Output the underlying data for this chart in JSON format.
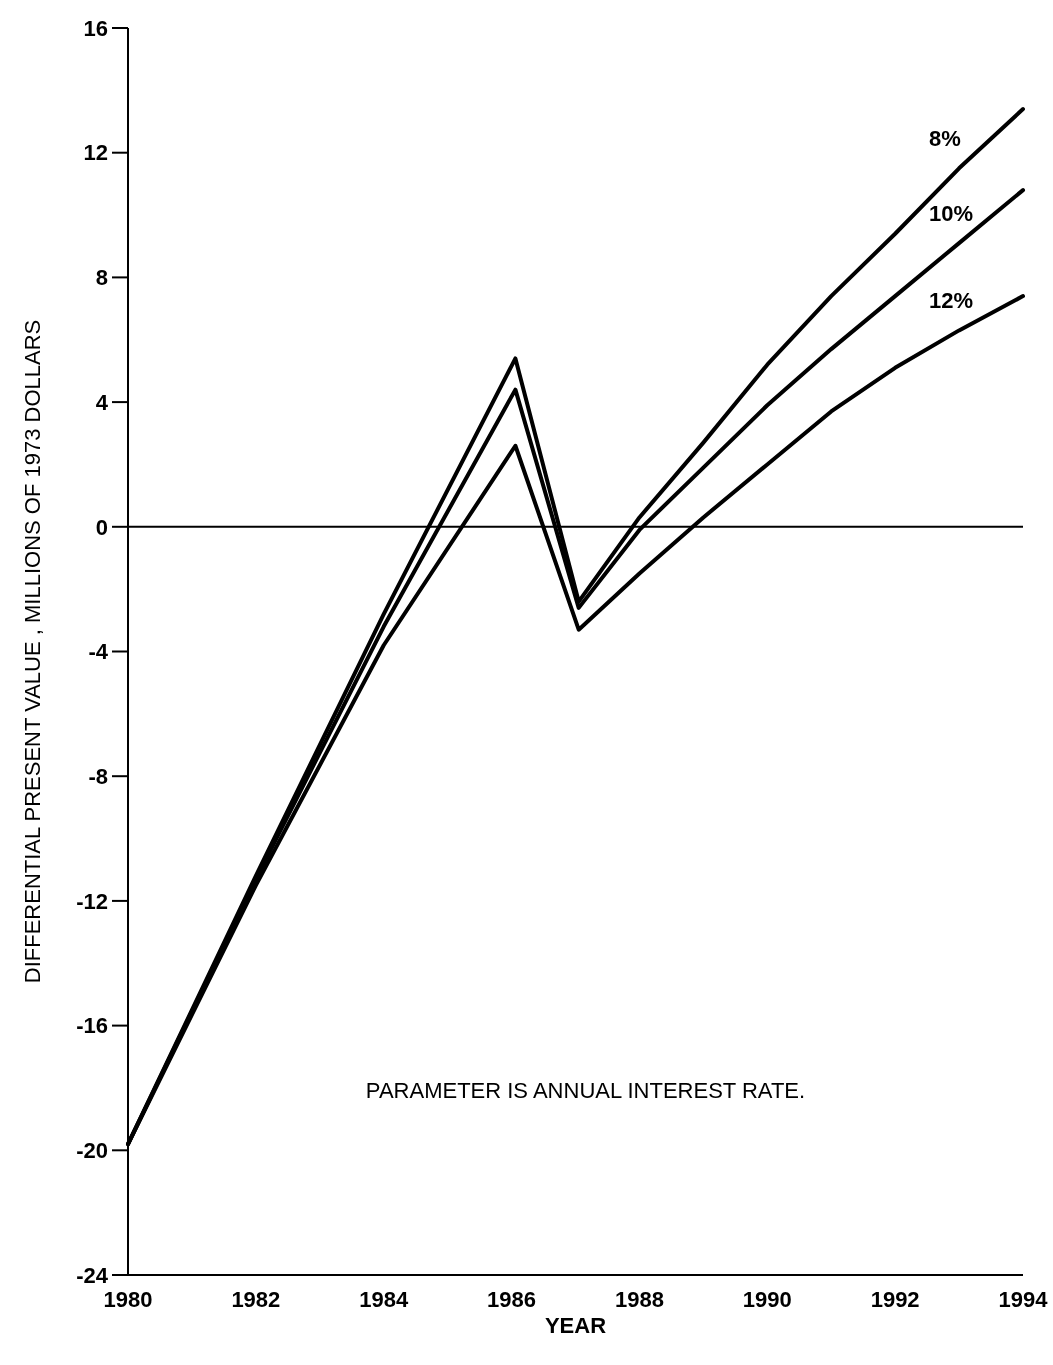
{
  "chart_data": {
    "type": "line",
    "xlabel": "YEAR",
    "ylabel": "DIFFERENTIAL PRESENT VALUE , MILLIONS OF 1973 DOLLARS",
    "x": [
      1980,
      1982,
      1984,
      1986.06,
      1987.05,
      1988,
      1989,
      1990,
      1991,
      1992,
      1993,
      1994
    ],
    "series": [
      {
        "name": "8%",
        "color": "#000000",
        "values": [
          -19.8,
          -11.2,
          -2.8,
          5.4,
          -2.4,
          0.3,
          2.7,
          5.2,
          7.4,
          9.4,
          11.5,
          13.4
        ]
      },
      {
        "name": "10%",
        "color": "#000000",
        "values": [
          -19.8,
          -11.3,
          -3.2,
          4.4,
          -2.6,
          -0.1,
          1.9,
          3.9,
          5.7,
          7.4,
          9.1,
          10.8
        ]
      },
      {
        "name": "12%",
        "color": "#000000",
        "values": [
          -19.8,
          -11.5,
          -3.8,
          2.6,
          -3.3,
          -1.5,
          0.3,
          2.0,
          3.7,
          5.1,
          6.3,
          7.4
        ]
      }
    ],
    "xlim": [
      1980,
      1994
    ],
    "xticks": [
      1980,
      1982,
      1984,
      1986,
      1988,
      1990,
      1992,
      1994
    ],
    "ylim": [
      -24,
      16
    ],
    "yticks": [
      -24,
      -20,
      -16,
      -12,
      -8,
      -4,
      0,
      4,
      8,
      12,
      16
    ],
    "ref_lines": [
      {
        "axis": "y",
        "value": 0
      }
    ],
    "annotations": [
      "PARAMETER IS ANNUAL INTEREST RATE."
    ],
    "grid": false,
    "marker": "none",
    "line_style": "solid"
  }
}
